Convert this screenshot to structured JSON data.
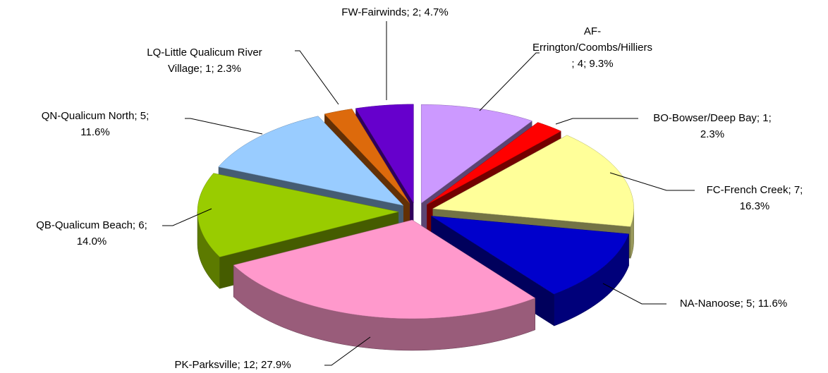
{
  "chart_data": {
    "type": "pie3d",
    "value_labels": [
      "AF-\nErrington/Coombs/Hilliers\n; 4; 9.3%",
      "BO-Bowser/Deep Bay; 1;\n2.3%",
      "FC-French Creek; 7;\n16.3%",
      "NA-Nanoose; 5; 11.6%",
      "PK-Parksville; 12; 27.9%",
      "QB-Qualicum Beach; 6;\n14.0%",
      "QN-Qualicum North; 5;\n11.6%",
      "LQ-Little Qualicum River\nVillage; 1; 2.3%",
      "FW-Fairwinds; 2; 4.7%"
    ],
    "values": [
      4,
      1,
      7,
      5,
      12,
      6,
      5,
      1,
      2
    ],
    "colors": [
      "#cc99ff",
      "#ff0000",
      "#ffff99",
      "#0000cc",
      "#ff99cc",
      "#99cc00",
      "#99ccff",
      "#dd6a0c",
      "#6600cc"
    ]
  }
}
